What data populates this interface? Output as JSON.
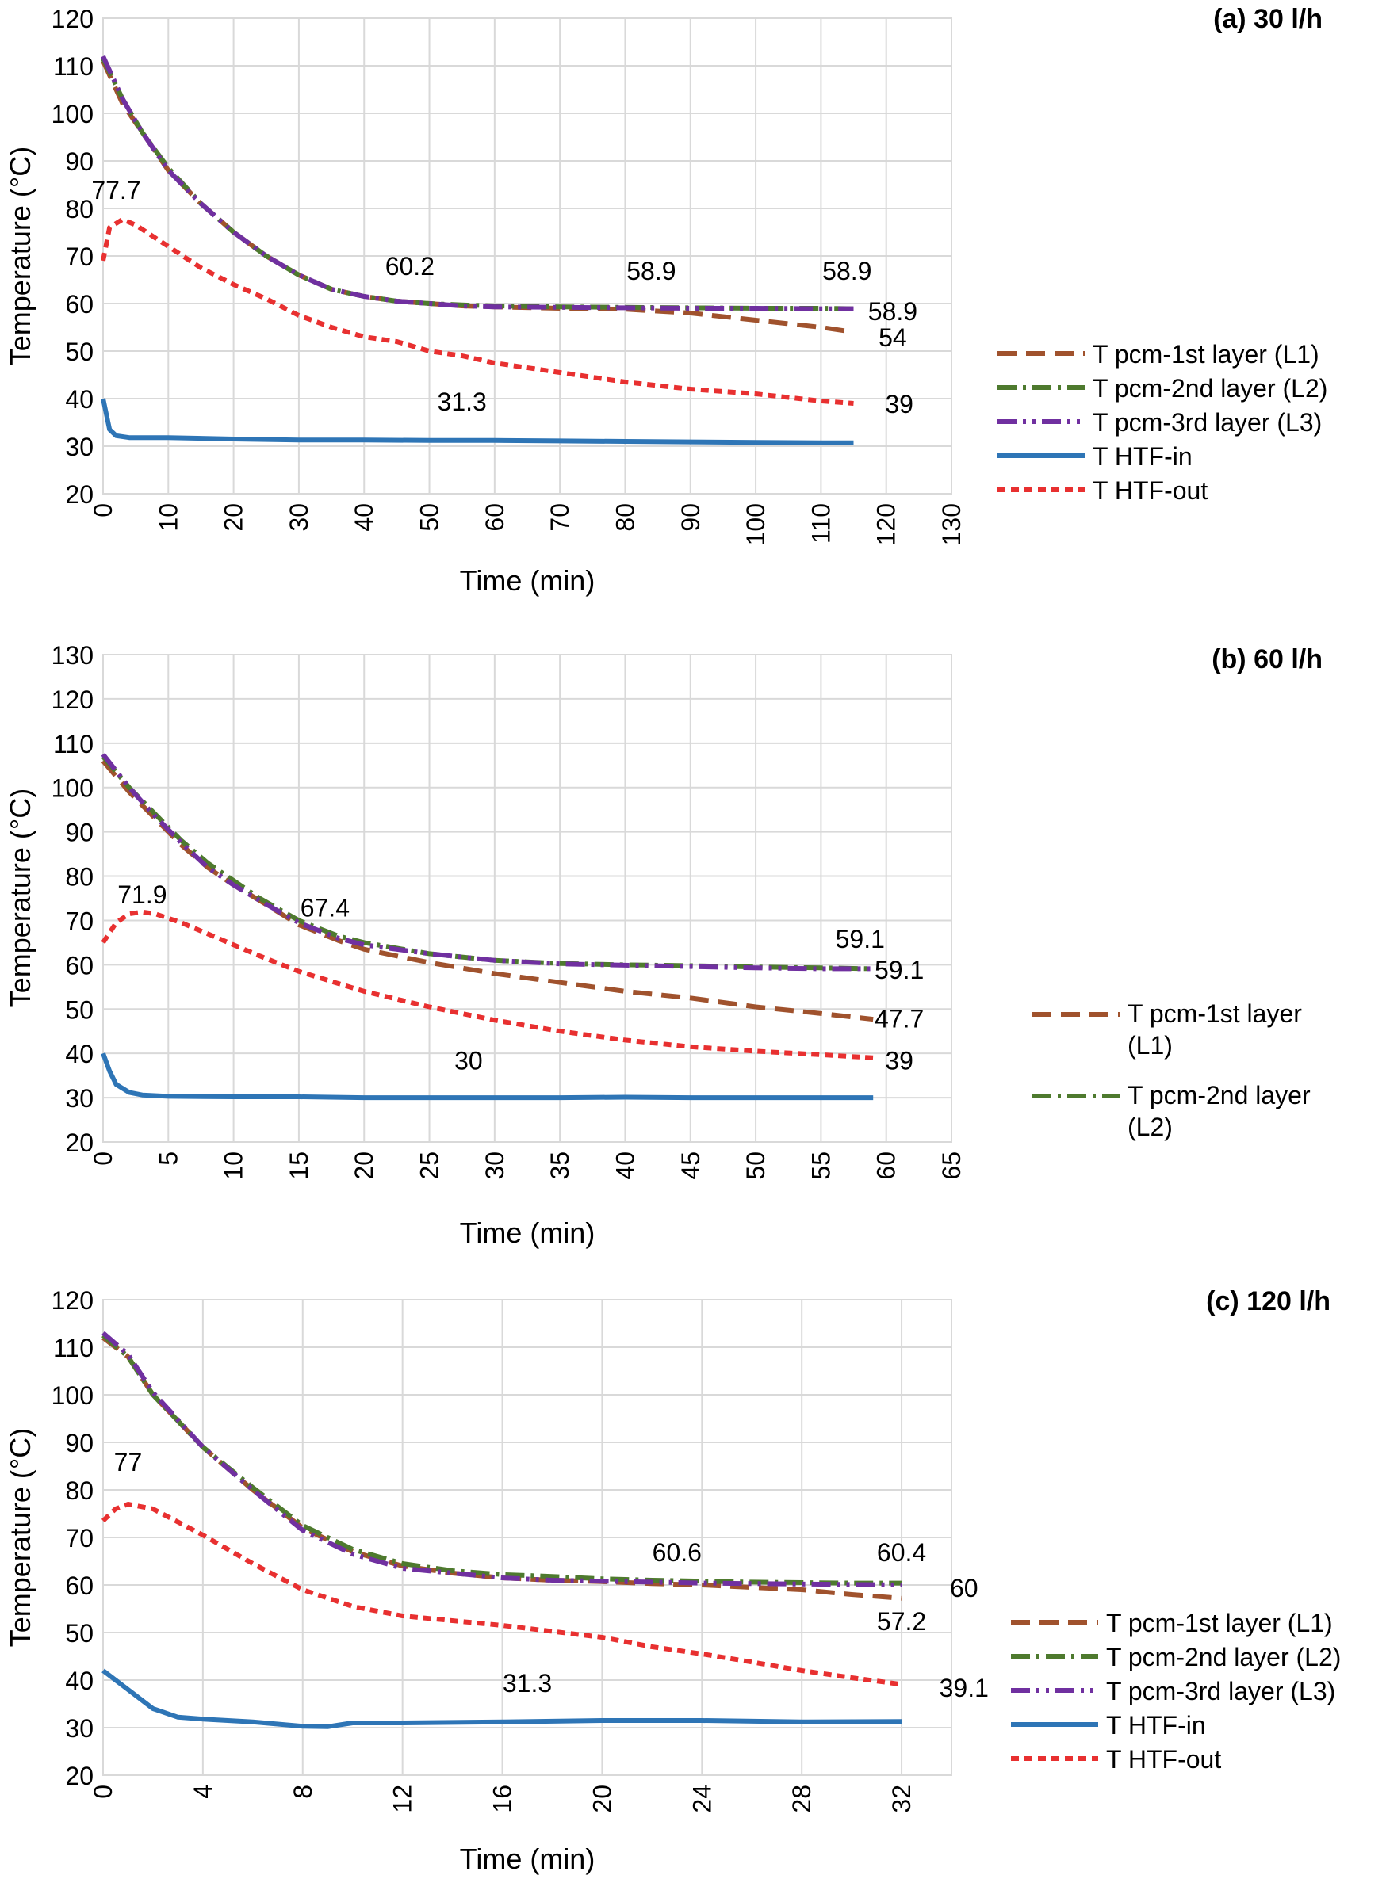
{
  "chart_data": [
    {
      "type": "line",
      "title": "(a) 30 l/h",
      "xlabel": "Time (min)",
      "ylabel": "Temperature (°C)",
      "xlim": [
        0,
        130
      ],
      "ylim": [
        20,
        120
      ],
      "xticks": [
        "0",
        "10",
        "20",
        "30",
        "40",
        "50",
        "60",
        "70",
        "80",
        "90",
        "100",
        "110",
        "120",
        "130"
      ],
      "yticks": [
        "20",
        "30",
        "40",
        "50",
        "60",
        "70",
        "80",
        "90",
        "100",
        "110",
        "120"
      ],
      "grid": true,
      "legend_position": "right",
      "legend": [
        "T pcm-1st layer (L1)",
        "T pcm-2nd layer (L2)",
        "T pcm-3rd layer (L3)",
        "T HTF-in",
        "T HTF-out"
      ],
      "series": [
        {
          "name": "T pcm-1st layer (L1)",
          "color": "#a0522d",
          "style": "long-dash",
          "x": [
            0,
            3,
            6,
            10,
            15,
            20,
            25,
            30,
            35,
            40,
            45,
            50,
            55,
            60,
            70,
            80,
            90,
            100,
            110,
            115
          ],
          "y": [
            111,
            102,
            96,
            88,
            81,
            75,
            70,
            66,
            63,
            61.5,
            60.5,
            60,
            59.5,
            59.3,
            59,
            58.8,
            58,
            56.5,
            55,
            54
          ]
        },
        {
          "name": "T pcm-2nd layer (L2)",
          "color": "#4e7a2e",
          "style": "dash-dot",
          "x": [
            0,
            3,
            6,
            10,
            15,
            20,
            25,
            30,
            35,
            40,
            45,
            50,
            55,
            60,
            70,
            80,
            90,
            100,
            110,
            115
          ],
          "y": [
            111.5,
            103,
            96,
            88.5,
            81,
            75,
            70,
            66,
            63,
            61.5,
            60.5,
            60,
            59.7,
            59.5,
            59.3,
            59.2,
            59.1,
            59,
            59,
            58.9
          ]
        },
        {
          "name": "T pcm-3rd layer (L3)",
          "color": "#7030a0",
          "style": "dash-dot-dot",
          "x": [
            0,
            3,
            6,
            10,
            15,
            20,
            25,
            30,
            35,
            40,
            45,
            50,
            55,
            60,
            70,
            80,
            90,
            100,
            110,
            115
          ],
          "y": [
            112,
            103,
            96,
            88,
            81,
            75,
            70,
            66,
            63,
            61.5,
            60.5,
            60,
            59.5,
            59.3,
            59.2,
            59.1,
            59,
            59,
            58.9,
            58.9
          ]
        },
        {
          "name": "T HTF-in",
          "color": "#2e75b6",
          "style": "solid",
          "x": [
            0,
            1,
            2,
            4,
            10,
            20,
            30,
            40,
            50,
            60,
            70,
            80,
            90,
            100,
            110,
            115
          ],
          "y": [
            40,
            33.5,
            32.2,
            31.8,
            31.8,
            31.5,
            31.3,
            31.3,
            31.2,
            31.2,
            31.1,
            31,
            30.9,
            30.8,
            30.7,
            30.7
          ]
        },
        {
          "name": "T HTF-out",
          "color": "#e83030",
          "style": "short-dash",
          "x": [
            0,
            1,
            3,
            5,
            10,
            15,
            20,
            25,
            30,
            35,
            40,
            45,
            50,
            55,
            60,
            70,
            80,
            90,
            100,
            110,
            115
          ],
          "y": [
            69,
            76,
            77.7,
            76.5,
            72,
            67.5,
            64,
            61,
            57.5,
            55,
            53,
            52,
            50,
            49,
            47.5,
            45.5,
            43.5,
            42,
            41,
            39.5,
            39
          ]
        }
      ],
      "annotations": [
        {
          "text": "77.7",
          "x": 2,
          "y": 84
        },
        {
          "text": "60.2",
          "x": 47,
          "y": 68
        },
        {
          "text": "58.9",
          "x": 84,
          "y": 67
        },
        {
          "text": "58.9",
          "x": 114,
          "y": 67
        },
        {
          "text": "58.9",
          "x": 121,
          "y": 58.5
        },
        {
          "text": "54",
          "x": 121,
          "y": 53
        },
        {
          "text": "31.3",
          "x": 55,
          "y": 39.5
        },
        {
          "text": "39",
          "x": 122,
          "y": 39
        }
      ]
    },
    {
      "type": "line",
      "title": "(b) 60 l/h",
      "xlabel": "Time (min)",
      "ylabel": "Temperature (°C)",
      "xlim": [
        0,
        65
      ],
      "ylim": [
        20,
        130
      ],
      "xticks": [
        "0",
        "5",
        "10",
        "15",
        "20",
        "25",
        "30",
        "35",
        "40",
        "45",
        "50",
        "55",
        "60",
        "65"
      ],
      "yticks": [
        "20",
        "30",
        "40",
        "50",
        "60",
        "70",
        "80",
        "90",
        "100",
        "110",
        "120",
        "130"
      ],
      "grid": true,
      "legend_position": "right",
      "legend": [
        "T pcm-1st layer (L1)",
        "T pcm-2nd layer (L2)"
      ],
      "series": [
        {
          "name": "T pcm-1st layer (L1)",
          "color": "#a0522d",
          "style": "long-dash",
          "x": [
            0,
            2,
            4,
            6,
            8,
            10,
            12,
            15,
            18,
            20,
            25,
            30,
            35,
            40,
            45,
            50,
            55,
            59
          ],
          "y": [
            106,
            99,
            93,
            87,
            82,
            78,
            74.5,
            69,
            65.5,
            63.5,
            60.5,
            58,
            56,
            54,
            52.5,
            50.5,
            49,
            47.7
          ]
        },
        {
          "name": "T pcm-2nd layer (L2)",
          "color": "#4e7a2e",
          "style": "dash-dot",
          "x": [
            0,
            2,
            4,
            6,
            8,
            10,
            12,
            15,
            18,
            20,
            25,
            30,
            35,
            40,
            45,
            50,
            55,
            59
          ],
          "y": [
            107,
            100,
            94,
            88,
            83,
            79,
            75,
            70,
            66.5,
            65,
            62.5,
            61,
            60.3,
            60,
            59.8,
            59.5,
            59.3,
            59.1
          ]
        },
        {
          "name": "T pcm-3rd layer (L3)",
          "color": "#7030a0",
          "style": "dash-dot-dot",
          "x": [
            0,
            2,
            4,
            6,
            8,
            10,
            12,
            15,
            18,
            20,
            25,
            30,
            35,
            40,
            45,
            50,
            55,
            59
          ],
          "y": [
            107.5,
            100,
            93.5,
            87.5,
            82,
            78,
            74.5,
            69.5,
            66,
            64.5,
            62.5,
            61,
            60.2,
            59.9,
            59.6,
            59.3,
            59.1,
            59.1
          ]
        },
        {
          "name": "T HTF-in",
          "color": "#2e75b6",
          "style": "solid",
          "x": [
            0,
            0.5,
            1,
            2,
            3,
            5,
            10,
            15,
            20,
            25,
            30,
            35,
            40,
            45,
            50,
            55,
            59
          ],
          "y": [
            40,
            36,
            33,
            31.2,
            30.6,
            30.3,
            30.2,
            30.2,
            30,
            30,
            30,
            30,
            30.1,
            30,
            30,
            30,
            30
          ]
        },
        {
          "name": "T HTF-out",
          "color": "#e83030",
          "style": "short-dash",
          "x": [
            0,
            1,
            2,
            3,
            4,
            6,
            8,
            10,
            12,
            15,
            20,
            25,
            30,
            35,
            40,
            45,
            50,
            55,
            59
          ],
          "y": [
            65,
            69.5,
            71.5,
            71.9,
            71.5,
            69.5,
            67,
            64.5,
            62,
            58.5,
            54,
            50.5,
            47.5,
            45,
            43,
            41.5,
            40.5,
            39.7,
            39
          ]
        }
      ],
      "annotations": [
        {
          "text": "71.9",
          "x": 3,
          "y": 76
        },
        {
          "text": "67.4",
          "x": 17,
          "y": 73
        },
        {
          "text": "59.1",
          "x": 58,
          "y": 66
        },
        {
          "text": "59.1",
          "x": 61,
          "y": 59
        },
        {
          "text": "47.7",
          "x": 61,
          "y": 48
        },
        {
          "text": "30",
          "x": 28,
          "y": 38.5
        },
        {
          "text": "39",
          "x": 61,
          "y": 38.5
        }
      ]
    },
    {
      "type": "line",
      "title": "(c) 120 l/h",
      "xlabel": "Time (min)",
      "ylabel": "Temperature (°C)",
      "xlim": [
        0,
        34
      ],
      "ylim": [
        20,
        120
      ],
      "xticks": [
        "0",
        "4",
        "8",
        "12",
        "16",
        "20",
        "24",
        "28",
        "32"
      ],
      "yticks": [
        "20",
        "30",
        "40",
        "50",
        "60",
        "70",
        "80",
        "90",
        "100",
        "110",
        "120"
      ],
      "grid": true,
      "legend_position": "right",
      "legend": [
        "T pcm-1st layer (L1)",
        "T pcm-2nd layer (L2)",
        "T pcm-3rd layer (L3)",
        "T HTF-in",
        "T HTF-out"
      ],
      "series": [
        {
          "name": "T pcm-1st layer (L1)",
          "color": "#a0522d",
          "style": "long-dash",
          "x": [
            0,
            1,
            2,
            4,
            6,
            8,
            10,
            12,
            14,
            16,
            18,
            20,
            22,
            24,
            26,
            28,
            30,
            32
          ],
          "y": [
            112,
            108,
            100,
            89,
            80,
            72,
            67,
            64,
            62.5,
            61.5,
            61,
            60.7,
            60.3,
            60,
            59.5,
            59,
            58,
            57.2
          ]
        },
        {
          "name": "T pcm-2nd layer (L2)",
          "color": "#4e7a2e",
          "style": "dash-dot",
          "x": [
            0,
            1,
            2,
            4,
            6,
            8,
            10,
            12,
            14,
            16,
            18,
            20,
            22,
            24,
            26,
            28,
            30,
            32
          ],
          "y": [
            112.5,
            108,
            100,
            89,
            80.5,
            72.5,
            67.5,
            64.5,
            63,
            62.2,
            61.8,
            61.3,
            61,
            60.8,
            60.6,
            60.5,
            60.4,
            60.4
          ]
        },
        {
          "name": "T pcm-3rd layer (L3)",
          "color": "#7030a0",
          "style": "dash-dot-dot",
          "x": [
            0,
            1,
            2,
            4,
            6,
            8,
            10,
            12,
            14,
            16,
            18,
            20,
            22,
            24,
            26,
            28,
            30,
            32
          ],
          "y": [
            113,
            108.5,
            100.5,
            89,
            80,
            71.5,
            66.5,
            63.5,
            62.5,
            61.5,
            61,
            60.8,
            60.6,
            60.4,
            60.3,
            60.2,
            60.1,
            60
          ]
        },
        {
          "name": "T HTF-in",
          "color": "#2e75b6",
          "style": "solid",
          "x": [
            0,
            1,
            2,
            3,
            4,
            6,
            8,
            9,
            10,
            12,
            16,
            20,
            24,
            28,
            32
          ],
          "y": [
            42,
            38,
            34,
            32.2,
            31.8,
            31.2,
            30.3,
            30.2,
            31,
            31,
            31.2,
            31.5,
            31.5,
            31.2,
            31.3
          ]
        },
        {
          "name": "T HTF-out",
          "color": "#e83030",
          "style": "short-dash",
          "x": [
            0,
            0.5,
            1,
            2,
            4,
            6,
            8,
            10,
            12,
            16,
            20,
            22,
            24,
            26,
            28,
            30,
            32
          ],
          "y": [
            73.5,
            76,
            77,
            76,
            70.5,
            64.5,
            59,
            55.5,
            53.5,
            51.5,
            49,
            47,
            45.5,
            43.8,
            42,
            40.5,
            39.1
          ]
        }
      ],
      "annotations": [
        {
          "text": "77",
          "x": 1,
          "y": 86
        },
        {
          "text": "60.6",
          "x": 23,
          "y": 67
        },
        {
          "text": "60.4",
          "x": 32,
          "y": 67
        },
        {
          "text": "60",
          "x": 34.5,
          "y": 59.5
        },
        {
          "text": "57.2",
          "x": 32,
          "y": 52.5
        },
        {
          "text": "31.3",
          "x": 17,
          "y": 39.5
        },
        {
          "text": "39.1",
          "x": 34.5,
          "y": 38.5
        }
      ]
    }
  ]
}
